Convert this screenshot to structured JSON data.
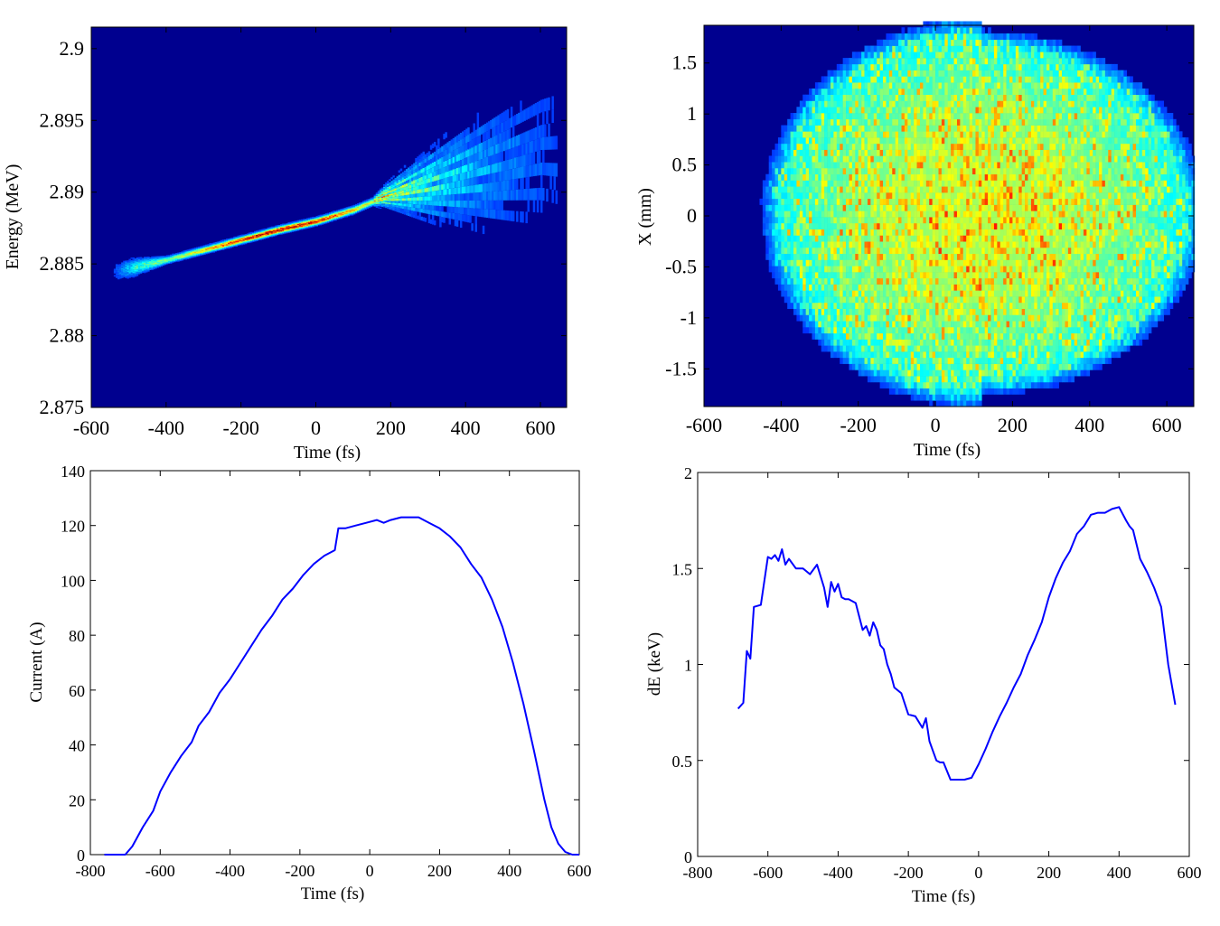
{
  "chart_data": [
    {
      "id": "energy-time",
      "type": "heatmap",
      "title": "",
      "xlabel": "Time (fs)",
      "ylabel": "Energy (MeV)",
      "xlim": [
        -600,
        670
      ],
      "ylim": [
        2.875,
        2.9015
      ],
      "xticks": [
        -600,
        -400,
        -200,
        0,
        200,
        400,
        600
      ],
      "yticks": [
        2.875,
        2.88,
        2.885,
        2.89,
        2.895,
        2.9
      ],
      "xtick_labels": [
        "-600",
        "-400",
        "-200",
        "0",
        "200",
        "400",
        "600"
      ],
      "ytick_labels": [
        "2.875",
        "2.88",
        "2.885",
        "2.89",
        "2.895",
        "2.9"
      ],
      "background_color": "#00008f",
      "colormap": "jet",
      "description_points": {
        "core_t": [
          -530,
          -400,
          -300,
          -200,
          -100,
          0,
          100,
          180,
          300,
          450,
          600
        ],
        "core_e": [
          2.8845,
          2.8853,
          2.886,
          2.8867,
          2.8874,
          2.888,
          2.8888,
          2.8897,
          2.8905,
          2.8915,
          2.8925
        ]
      }
    },
    {
      "id": "x-time",
      "type": "heatmap",
      "title": "",
      "xlabel": "Time (fs)",
      "ylabel": "X (mm)",
      "xlim": [
        -600,
        670
      ],
      "ylim": [
        -1.87,
        1.87
      ],
      "xticks": [
        -600,
        -400,
        -200,
        0,
        200,
        400,
        600
      ],
      "yticks": [
        -1.5,
        -1,
        -0.5,
        0,
        0.5,
        1,
        1.5
      ],
      "xtick_labels": [
        "-600",
        "-400",
        "-200",
        "0",
        "200",
        "400",
        "600"
      ],
      "ytick_labels": [
        "-1.5",
        "-1",
        "-0.5",
        "0",
        "0.5",
        "1",
        "1.5"
      ],
      "background_color": "#00008f",
      "colormap": "jet",
      "ellipse": {
        "t_center": 120,
        "t_half_width": 570,
        "x_half_height": 1.9
      }
    },
    {
      "id": "current",
      "type": "line",
      "title": "",
      "xlabel": "Time (fs)",
      "ylabel": "Current (A)",
      "xlim": [
        -800,
        600
      ],
      "ylim": [
        0,
        140
      ],
      "xticks": [
        -800,
        -600,
        -400,
        -200,
        0,
        200,
        400,
        600
      ],
      "yticks": [
        0,
        20,
        40,
        60,
        80,
        100,
        120,
        140
      ],
      "xtick_labels": [
        "-800",
        "-600",
        "-400",
        "-200",
        "0",
        "200",
        "400",
        "600"
      ],
      "ytick_labels": [
        "0",
        "20",
        "40",
        "60",
        "80",
        "100",
        "120",
        "140"
      ],
      "line_color": "#0000ff",
      "series": [
        {
          "name": "current",
          "x": [
            -760,
            -700,
            -680,
            -650,
            -620,
            -600,
            -570,
            -540,
            -510,
            -490,
            -460,
            -430,
            -400,
            -370,
            -340,
            -310,
            -280,
            -250,
            -220,
            -190,
            -160,
            -130,
            -100,
            -90,
            -70,
            -40,
            -10,
            20,
            40,
            60,
            90,
            110,
            140,
            170,
            200,
            230,
            260,
            290,
            320,
            350,
            380,
            410,
            440,
            470,
            500,
            520,
            540,
            560,
            580,
            600
          ],
          "y": [
            0,
            0,
            3,
            10,
            16,
            23,
            30,
            36,
            41,
            47,
            52,
            59,
            64,
            70,
            76,
            82,
            87,
            93,
            97,
            102,
            106,
            109,
            111,
            119,
            119,
            120,
            121,
            122,
            121,
            122,
            123,
            123,
            123,
            121,
            119,
            116,
            112,
            106,
            101,
            93,
            83,
            70,
            55,
            38,
            20,
            10,
            4,
            1,
            0,
            0
          ]
        }
      ]
    },
    {
      "id": "de",
      "type": "line",
      "title": "",
      "xlabel": "Time (fs)",
      "ylabel": "dE (keV)",
      "xlim": [
        -800,
        600
      ],
      "ylim": [
        0,
        2
      ],
      "xticks": [
        -800,
        -600,
        -400,
        -200,
        0,
        200,
        400,
        600
      ],
      "yticks": [
        0,
        0.5,
        1,
        1.5,
        2
      ],
      "xtick_labels": [
        "-800",
        "-600",
        "-400",
        "-200",
        "0",
        "200",
        "400",
        "600"
      ],
      "ytick_labels": [
        "0",
        "0.5",
        "1",
        "1.5",
        "2"
      ],
      "line_color": "#0000ff",
      "series": [
        {
          "name": "dE",
          "x": [
            -685,
            -670,
            -660,
            -650,
            -640,
            -620,
            -600,
            -590,
            -580,
            -570,
            -560,
            -550,
            -540,
            -520,
            -500,
            -480,
            -460,
            -440,
            -430,
            -420,
            -410,
            -400,
            -390,
            -380,
            -370,
            -350,
            -330,
            -320,
            -310,
            -300,
            -290,
            -280,
            -270,
            -260,
            -250,
            -240,
            -220,
            -200,
            -180,
            -160,
            -150,
            -140,
            -130,
            -120,
            -110,
            -100,
            -80,
            -60,
            -40,
            -20,
            0,
            20,
            40,
            60,
            80,
            100,
            120,
            140,
            160,
            180,
            200,
            220,
            240,
            260,
            280,
            300,
            320,
            340,
            360,
            380,
            400,
            420,
            430,
            440,
            460,
            480,
            500,
            520,
            540,
            560
          ],
          "y": [
            0.77,
            0.8,
            1.07,
            1.03,
            1.3,
            1.31,
            1.56,
            1.55,
            1.57,
            1.54,
            1.6,
            1.52,
            1.55,
            1.5,
            1.5,
            1.47,
            1.52,
            1.4,
            1.3,
            1.43,
            1.38,
            1.42,
            1.35,
            1.34,
            1.34,
            1.32,
            1.18,
            1.2,
            1.15,
            1.22,
            1.18,
            1.1,
            1.08,
            1.0,
            0.95,
            0.88,
            0.85,
            0.74,
            0.73,
            0.67,
            0.72,
            0.6,
            0.55,
            0.5,
            0.49,
            0.49,
            0.4,
            0.4,
            0.4,
            0.41,
            0.48,
            0.56,
            0.65,
            0.73,
            0.8,
            0.88,
            0.95,
            1.05,
            1.13,
            1.22,
            1.35,
            1.45,
            1.53,
            1.59,
            1.68,
            1.72,
            1.78,
            1.79,
            1.79,
            1.81,
            1.82,
            1.75,
            1.72,
            1.7,
            1.55,
            1.48,
            1.4,
            1.3,
            1.0,
            0.79
          ]
        }
      ]
    }
  ]
}
